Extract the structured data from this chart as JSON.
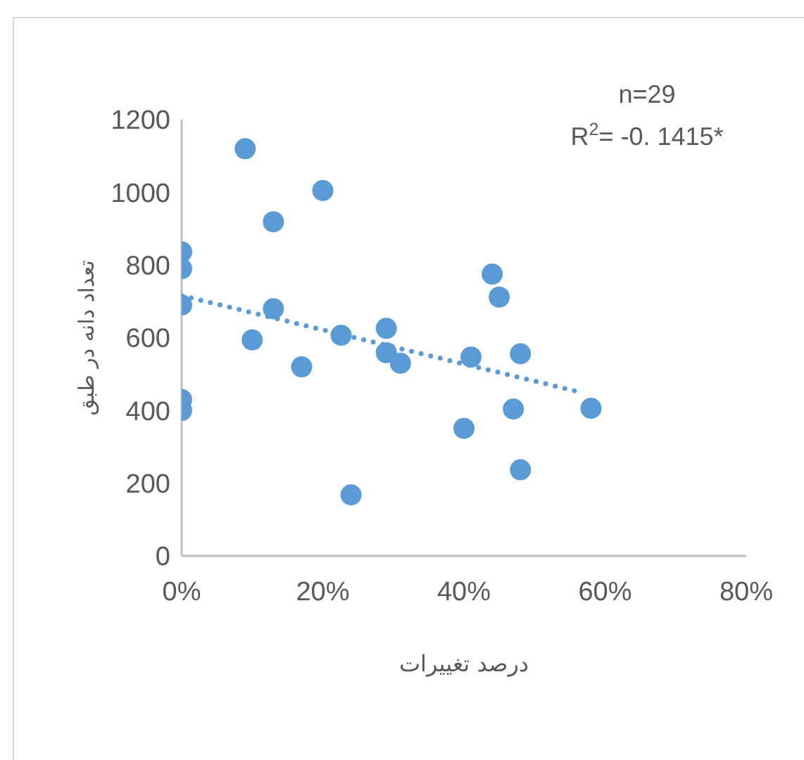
{
  "chart_data": {
    "type": "scatter",
    "xlabel": "درصد تغییرات",
    "ylabel": "تعداد دانه در طبق",
    "annotations": [
      "n=29",
      "R$^{2}$= -0. 1415*"
    ],
    "xlim": [
      0,
      80
    ],
    "xticks": [
      {
        "value": 0,
        "label": "0%"
      },
      {
        "value": 20,
        "label": "20%"
      },
      {
        "value": 40,
        "label": "40%"
      },
      {
        "value": 60,
        "label": "60%"
      },
      {
        "value": 80,
        "label": "80%"
      }
    ],
    "ylim": [
      0,
      1200
    ],
    "yticks": [
      0,
      200,
      400,
      600,
      800,
      1000,
      1200
    ],
    "marker": "circle",
    "series": [
      {
        "color": "#5b9bd5",
        "x": [
          0,
          0,
          0,
          0,
          0,
          9,
          20,
          13,
          13,
          10,
          17,
          22.6,
          24,
          29,
          29,
          31,
          44,
          45,
          41,
          48,
          47,
          40,
          48,
          58
        ],
        "values": [
          836,
          790,
          690,
          430,
          400,
          1120,
          1005,
          919,
          680,
          594,
          520,
          607,
          168,
          626,
          559,
          530,
          775,
          712,
          547,
          556,
          404,
          351,
          237,
          406
        ]
      },
      {
        "type": "line",
        "color": "#5b9bd5",
        "x": [
          0,
          57
        ],
        "values": [
          716,
          448
        ],
        "line_style": "dotted",
        "marker": "none"
      }
    ]
  }
}
